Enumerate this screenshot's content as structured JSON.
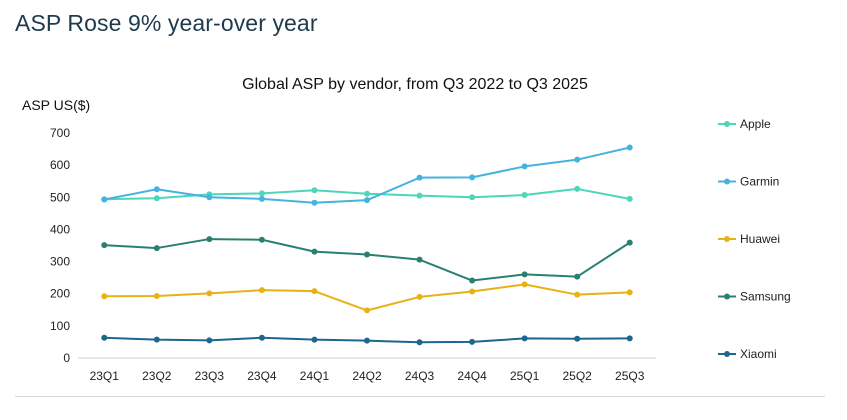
{
  "headline": "ASP Rose 9% year-over year",
  "chart_data": {
    "type": "line",
    "title": "Global ASP by vendor, from Q3 2022 to Q3 2025",
    "ylabel": "ASP US($)",
    "xlabel": "",
    "categories": [
      "23Q1",
      "23Q2",
      "23Q3",
      "23Q4",
      "24Q1",
      "24Q2",
      "24Q3",
      "24Q4",
      "25Q1",
      "25Q2",
      "25Q3"
    ],
    "ylim": [
      0,
      700
    ],
    "yticks": [
      "0",
      "100",
      "200",
      "300",
      "400",
      "500",
      "600",
      "700"
    ],
    "legend_position": "right",
    "series": [
      {
        "name": "Apple",
        "color": "#4dd6b8",
        "values": [
          494,
          497,
          509,
          512,
          522,
          511,
          505,
          500,
          507,
          526,
          495
        ]
      },
      {
        "name": "Garmin",
        "color": "#45b3e0",
        "values": [
          493,
          525,
          500,
          495,
          483,
          491,
          561,
          562,
          596,
          617,
          655
        ]
      },
      {
        "name": "Huawei",
        "color": "#e8b116",
        "values": [
          192,
          193,
          201,
          211,
          208,
          148,
          190,
          207,
          229,
          197,
          204
        ]
      },
      {
        "name": "Samsung",
        "color": "#2a8070",
        "values": [
          351,
          342,
          370,
          368,
          331,
          322,
          306,
          241,
          260,
          253,
          359
        ]
      },
      {
        "name": "Xiaomi",
        "color": "#1d6690",
        "values": [
          63,
          57,
          55,
          63,
          57,
          54,
          49,
          50,
          61,
          60,
          61
        ]
      }
    ]
  }
}
